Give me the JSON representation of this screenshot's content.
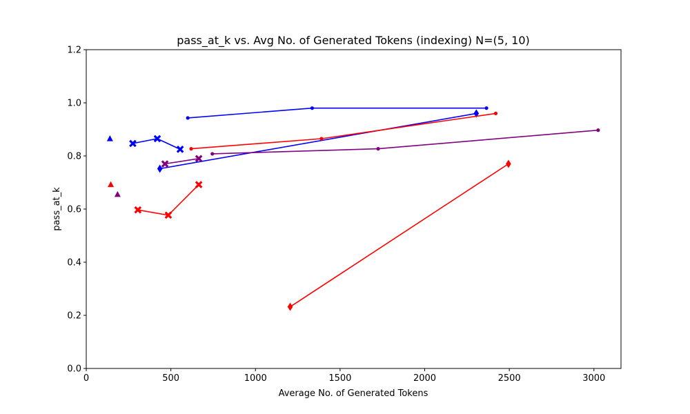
{
  "chart_data": {
    "type": "line",
    "title": "pass_at_k vs. Avg No. of Generated Tokens (indexing) N=(5, 10)",
    "xlabel": "Average No. of Generated Tokens",
    "ylabel": "pass_at_k",
    "xlim": [
      0,
      3160
    ],
    "ylim": [
      0,
      1.2
    ],
    "xticks": [
      0,
      500,
      1000,
      1500,
      2000,
      2500,
      3000
    ],
    "yticks": [
      0.0,
      0.2,
      0.4,
      0.6,
      0.8,
      1.0,
      1.2
    ],
    "xtick_labels": [
      "0",
      "500",
      "1000",
      "1500",
      "2000",
      "2500",
      "3000"
    ],
    "ytick_labels": [
      "0.0",
      "0.2",
      "0.4",
      "0.6",
      "0.8",
      "1.0",
      "1.2"
    ],
    "grid": false,
    "legend": "none",
    "series": [
      {
        "color": "#0000ff",
        "marker": "circle",
        "points": [
          [
            600,
            0.943
          ],
          [
            1335,
            0.98
          ],
          [
            2365,
            0.98
          ]
        ]
      },
      {
        "color": "#0000ff",
        "marker": "x",
        "points": [
          [
            275,
            0.847
          ],
          [
            420,
            0.865
          ],
          [
            555,
            0.825
          ]
        ]
      },
      {
        "color": "#0000ff",
        "marker": "diamond",
        "points": [
          [
            435,
            0.752
          ],
          [
            2305,
            0.96
          ]
        ]
      },
      {
        "color": "#0000ff",
        "marker": "triangle",
        "points": [
          [
            140,
            0.865
          ]
        ]
      },
      {
        "color": "#ff0000",
        "marker": "circle",
        "points": [
          [
            620,
            0.827
          ],
          [
            1390,
            0.865
          ],
          [
            2420,
            0.96
          ]
        ]
      },
      {
        "color": "#ff0000",
        "marker": "x",
        "points": [
          [
            305,
            0.597
          ],
          [
            485,
            0.577
          ],
          [
            665,
            0.692
          ]
        ]
      },
      {
        "color": "#ff0000",
        "marker": "diamond",
        "points": [
          [
            1205,
            0.232
          ],
          [
            2495,
            0.77
          ]
        ]
      },
      {
        "color": "#ff0000",
        "marker": "triangle",
        "points": [
          [
            145,
            0.692
          ]
        ]
      },
      {
        "color": "#800080",
        "marker": "circle",
        "points": [
          [
            745,
            0.808
          ],
          [
            1725,
            0.827
          ],
          [
            3025,
            0.897
          ]
        ]
      },
      {
        "color": "#800080",
        "marker": "x",
        "points": [
          [
            465,
            0.77
          ],
          [
            665,
            0.79
          ]
        ]
      },
      {
        "color": "#800080",
        "marker": "triangle",
        "points": [
          [
            185,
            0.655
          ]
        ]
      }
    ]
  }
}
